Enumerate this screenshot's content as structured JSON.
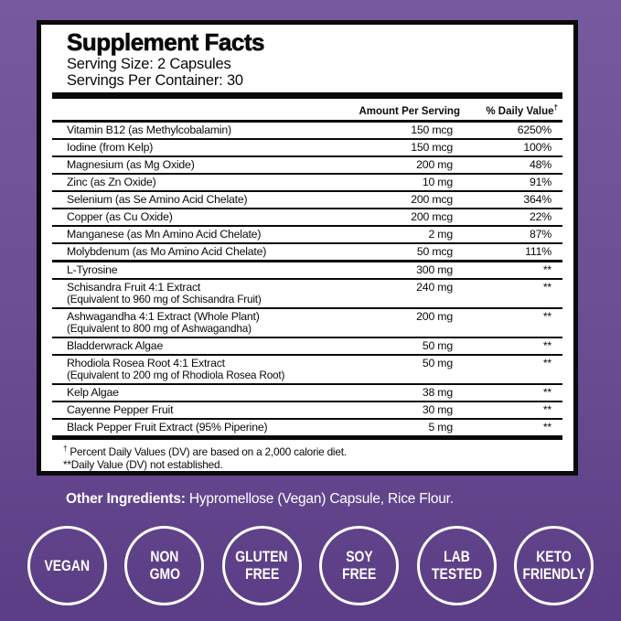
{
  "colors": {
    "background_top": "#76599F",
    "background_bottom": "#5B3D85",
    "panel_background": "#FFFFFF",
    "ink": "#0A0A0A",
    "text_white": "#FFFFFF"
  },
  "label": {
    "title": "Supplement Facts",
    "serving_size": "Serving Size: 2 Capsules",
    "servings_per_container": "Servings Per Container: 30",
    "columns": {
      "amount": "Amount Per Serving",
      "daily_value": "% Daily Value",
      "daily_value_mark": "†"
    },
    "rows": [
      {
        "name": "Vitamin B12 (as Methylcobalamin)",
        "amount": "150 mcg",
        "dv": "6250%"
      },
      {
        "name": "Iodine (from Kelp)",
        "amount": "150 mcg",
        "dv": "100%"
      },
      {
        "name": "Magnesium (as Mg Oxide)",
        "amount": "200 mg",
        "dv": "48%"
      },
      {
        "name": "Zinc (as Zn Oxide)",
        "amount": "10 mg",
        "dv": "91%"
      },
      {
        "name": "Selenium (as Se Amino Acid Chelate)",
        "amount": "200 mcg",
        "dv": "364%"
      },
      {
        "name": "Copper (as Cu Oxide)",
        "amount": "200 mcg",
        "dv": "22%"
      },
      {
        "name": "Manganese (as Mn Amino Acid Chelate)",
        "amount": "2 mg",
        "dv": "87%"
      },
      {
        "name": "Molybdenum (as Mo Amino Acid Chelate)",
        "amount": "50 mcg",
        "dv": "111%",
        "group_end": true
      },
      {
        "name": "L-Tyrosine",
        "amount": "300 mg",
        "dv": "**"
      },
      {
        "name": "Schisandra Fruit 4:1 Extract",
        "sub": "(Equivalent to 960 mg of Schisandra Fruit)",
        "amount": "240 mg",
        "dv": "**"
      },
      {
        "name": "Ashwagandha 4:1 Extract (Whole Plant)",
        "sub": "(Equivalent to 800 mg of Ashwagandha)",
        "amount": "200 mg",
        "dv": "**"
      },
      {
        "name": "Bladderwrack Algae",
        "amount": "50 mg",
        "dv": "**"
      },
      {
        "name": "Rhodiola Rosea Root 4:1 Extract",
        "sub": "(Equivalent to 200 mg of Rhodiola Rosea Root)",
        "amount": "50 mg",
        "dv": "**"
      },
      {
        "name": "Kelp Algae",
        "amount": "38 mg",
        "dv": "**"
      },
      {
        "name": "Cayenne Pepper Fruit",
        "amount": "30 mg",
        "dv": "**"
      },
      {
        "name": "Black Pepper Fruit Extract (95% Piperine)",
        "amount": "5 mg",
        "dv": "**"
      }
    ],
    "footnotes": [
      {
        "mark": "†",
        "text": " Percent Daily Values (DV) are based on a 2,000 calorie diet."
      },
      {
        "mark": "**",
        "text": "Daily Value (DV) not established."
      }
    ]
  },
  "other_ingredients": {
    "label": "Other Ingredients:",
    "text": " Hypromellose (Vegan) Capsule, Rice Flour."
  },
  "badges": [
    {
      "lines": [
        "VEGAN"
      ]
    },
    {
      "lines": [
        "NON",
        "GMO"
      ]
    },
    {
      "lines": [
        "GLUTEN",
        "FREE"
      ]
    },
    {
      "lines": [
        "SOY",
        "FREE"
      ]
    },
    {
      "lines": [
        "LAB",
        "TESTED"
      ]
    },
    {
      "lines": [
        "KETO",
        "FRIENDLY"
      ]
    }
  ]
}
